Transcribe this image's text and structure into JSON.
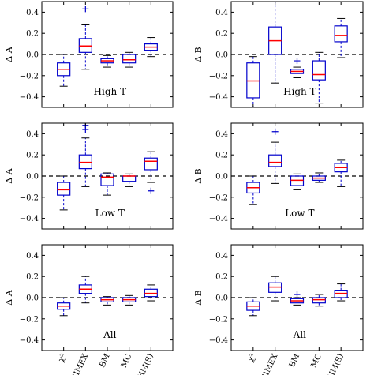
{
  "colors": {
    "box": "#0000cc",
    "median": "#ff0000",
    "flier": "#0000cc",
    "reference_line": "#000000",
    "frame": "#000000"
  },
  "categories": [
    "χ²",
    "SIMEX",
    "BM",
    "MC",
    "HM(S)"
  ],
  "chart_data": [
    {
      "type": "box",
      "panel": "top-left",
      "ylabel": "Δ A",
      "annotation": "High T",
      "ylim": [
        -0.5,
        0.5
      ],
      "yticks": [
        "0.4",
        "0.2",
        "0.0",
        "−0.2",
        "−0.4"
      ],
      "reference_y": 0.0,
      "boxes": [
        {
          "category": "χ²",
          "whisker_low": -0.3,
          "q1": -0.2,
          "median": -0.14,
          "q3": -0.08,
          "whisker_high": 0.0,
          "fliers": []
        },
        {
          "category": "SIMEX",
          "whisker_low": -0.14,
          "q1": 0.02,
          "median": 0.08,
          "q3": 0.15,
          "whisker_high": 0.28,
          "fliers": [
            0.43
          ]
        },
        {
          "category": "BM",
          "whisker_low": -0.12,
          "q1": -0.08,
          "median": -0.06,
          "q3": -0.04,
          "whisker_high": -0.01,
          "fliers": []
        },
        {
          "category": "MC",
          "whisker_low": -0.12,
          "q1": -0.08,
          "median": -0.05,
          "q3": 0.0,
          "whisker_high": 0.02,
          "fliers": []
        },
        {
          "category": "HM(S)",
          "whisker_low": -0.02,
          "q1": 0.04,
          "median": 0.07,
          "q3": 0.1,
          "whisker_high": 0.16,
          "fliers": []
        }
      ]
    },
    {
      "type": "box",
      "panel": "top-right",
      "ylabel": "Δ B",
      "annotation": "High T",
      "ylim": [
        -0.5,
        0.5
      ],
      "yticks": [
        "0.4",
        "0.2",
        "0.0",
        "−0.2",
        "−0.4"
      ],
      "reference_y": 0.0,
      "boxes": [
        {
          "category": "χ²",
          "whisker_low": -0.5,
          "q1": -0.41,
          "median": -0.25,
          "q3": -0.08,
          "whisker_high": -0.02,
          "fliers": []
        },
        {
          "category": "SIMEX",
          "whisker_low": -0.27,
          "q1": 0.0,
          "median": 0.13,
          "q3": 0.26,
          "whisker_high": 0.5,
          "fliers": []
        },
        {
          "category": "BM",
          "whisker_low": -0.22,
          "q1": -0.18,
          "median": -0.16,
          "q3": -0.14,
          "whisker_high": -0.12,
          "fliers": [
            -0.06
          ]
        },
        {
          "category": "MC",
          "whisker_low": -0.46,
          "q1": -0.24,
          "median": -0.19,
          "q3": -0.06,
          "whisker_high": 0.02,
          "fliers": []
        },
        {
          "category": "HM(S)",
          "whisker_low": -0.03,
          "q1": 0.12,
          "median": 0.18,
          "q3": 0.27,
          "whisker_high": 0.34,
          "fliers": []
        }
      ]
    },
    {
      "type": "box",
      "panel": "middle-left",
      "ylabel": "Δ A",
      "annotation": "Low T",
      "ylim": [
        -0.5,
        0.5
      ],
      "yticks": [
        "0.4",
        "0.2",
        "0.0",
        "−0.2",
        "−0.4"
      ],
      "reference_y": 0.0,
      "boxes": [
        {
          "category": "χ²",
          "whisker_low": -0.32,
          "q1": -0.18,
          "median": -0.13,
          "q3": -0.06,
          "whisker_high": 0.0,
          "fliers": []
        },
        {
          "category": "SIMEX",
          "whisker_low": -0.1,
          "q1": 0.07,
          "median": 0.13,
          "q3": 0.2,
          "whisker_high": 0.36,
          "fliers": [
            0.44,
            0.48
          ]
        },
        {
          "category": "BM",
          "whisker_low": -0.18,
          "q1": -0.09,
          "median": -0.01,
          "q3": 0.02,
          "whisker_high": 0.03,
          "fliers": []
        },
        {
          "category": "MC",
          "whisker_low": -0.1,
          "q1": -0.05,
          "median": 0.0,
          "q3": 0.0,
          "whisker_high": 0.02,
          "fliers": []
        },
        {
          "category": "HM(S)",
          "whisker_low": -0.06,
          "q1": 0.06,
          "median": 0.14,
          "q3": 0.17,
          "whisker_high": 0.23,
          "fliers": [
            -0.14
          ]
        }
      ]
    },
    {
      "type": "box",
      "panel": "middle-right",
      "ylabel": "Δ B",
      "annotation": "Low T",
      "ylim": [
        -0.5,
        0.5
      ],
      "yticks": [
        "0.4",
        "0.2",
        "0.0",
        "−0.2",
        "−0.4"
      ],
      "reference_y": 0.0,
      "boxes": [
        {
          "category": "χ²",
          "whisker_low": -0.27,
          "q1": -0.16,
          "median": -0.11,
          "q3": -0.06,
          "whisker_high": 0.0,
          "fliers": []
        },
        {
          "category": "SIMEX",
          "whisker_low": -0.07,
          "q1": 0.09,
          "median": 0.13,
          "q3": 0.2,
          "whisker_high": 0.32,
          "fliers": [
            0.42
          ]
        },
        {
          "category": "BM",
          "whisker_low": -0.13,
          "q1": -0.09,
          "median": -0.04,
          "q3": 0.0,
          "whisker_high": 0.02,
          "fliers": []
        },
        {
          "category": "MC",
          "whisker_low": -0.06,
          "q1": -0.04,
          "median": -0.02,
          "q3": 0.0,
          "whisker_high": 0.03,
          "fliers": []
        },
        {
          "category": "HM(S)",
          "whisker_low": -0.1,
          "q1": 0.04,
          "median": 0.08,
          "q3": 0.12,
          "whisker_high": 0.15,
          "fliers": []
        }
      ]
    },
    {
      "type": "box",
      "panel": "bottom-left",
      "ylabel": "Δ A",
      "annotation": "All",
      "ylim": [
        -0.5,
        0.5
      ],
      "yticks": [
        "0.4",
        "0.2",
        "0.0",
        "−0.2",
        "−0.4"
      ],
      "reference_y": 0.0,
      "boxes": [
        {
          "category": "χ²",
          "whisker_low": -0.17,
          "q1": -0.11,
          "median": -0.08,
          "q3": -0.05,
          "whisker_high": 0.0,
          "fliers": []
        },
        {
          "category": "SIMEX",
          "whisker_low": -0.05,
          "q1": 0.04,
          "median": 0.08,
          "q3": 0.12,
          "whisker_high": 0.2,
          "fliers": []
        },
        {
          "category": "BM",
          "whisker_low": -0.07,
          "q1": -0.04,
          "median": -0.02,
          "q3": 0.0,
          "whisker_high": 0.01,
          "fliers": []
        },
        {
          "category": "MC",
          "whisker_low": -0.07,
          "q1": -0.04,
          "median": -0.02,
          "q3": 0.0,
          "whisker_high": 0.02,
          "fliers": []
        },
        {
          "category": "HM(S)",
          "whisker_low": -0.03,
          "q1": 0.01,
          "median": 0.04,
          "q3": 0.08,
          "whisker_high": 0.12,
          "fliers": []
        }
      ]
    },
    {
      "type": "box",
      "panel": "bottom-right",
      "ylabel": "Δ B",
      "annotation": "All",
      "ylim": [
        -0.5,
        0.5
      ],
      "yticks": [
        "0.4",
        "0.2",
        "0.0",
        "−0.2",
        "−0.4"
      ],
      "reference_y": 0.0,
      "boxes": [
        {
          "category": "χ²",
          "whisker_low": -0.17,
          "q1": -0.12,
          "median": -0.08,
          "q3": -0.04,
          "whisker_high": 0.0,
          "fliers": []
        },
        {
          "category": "SIMEX",
          "whisker_low": -0.03,
          "q1": 0.05,
          "median": 0.1,
          "q3": 0.14,
          "whisker_high": 0.2,
          "fliers": []
        },
        {
          "category": "BM",
          "whisker_low": -0.07,
          "q1": -0.05,
          "median": -0.03,
          "q3": -0.01,
          "whisker_high": 0.0,
          "fliers": [
            0.03
          ]
        },
        {
          "category": "MC",
          "whisker_low": -0.08,
          "q1": -0.05,
          "median": -0.02,
          "q3": 0.0,
          "whisker_high": 0.03,
          "fliers": []
        },
        {
          "category": "HM(S)",
          "whisker_low": -0.03,
          "q1": 0.0,
          "median": 0.04,
          "q3": 0.07,
          "whisker_high": 0.13,
          "fliers": []
        }
      ]
    }
  ]
}
